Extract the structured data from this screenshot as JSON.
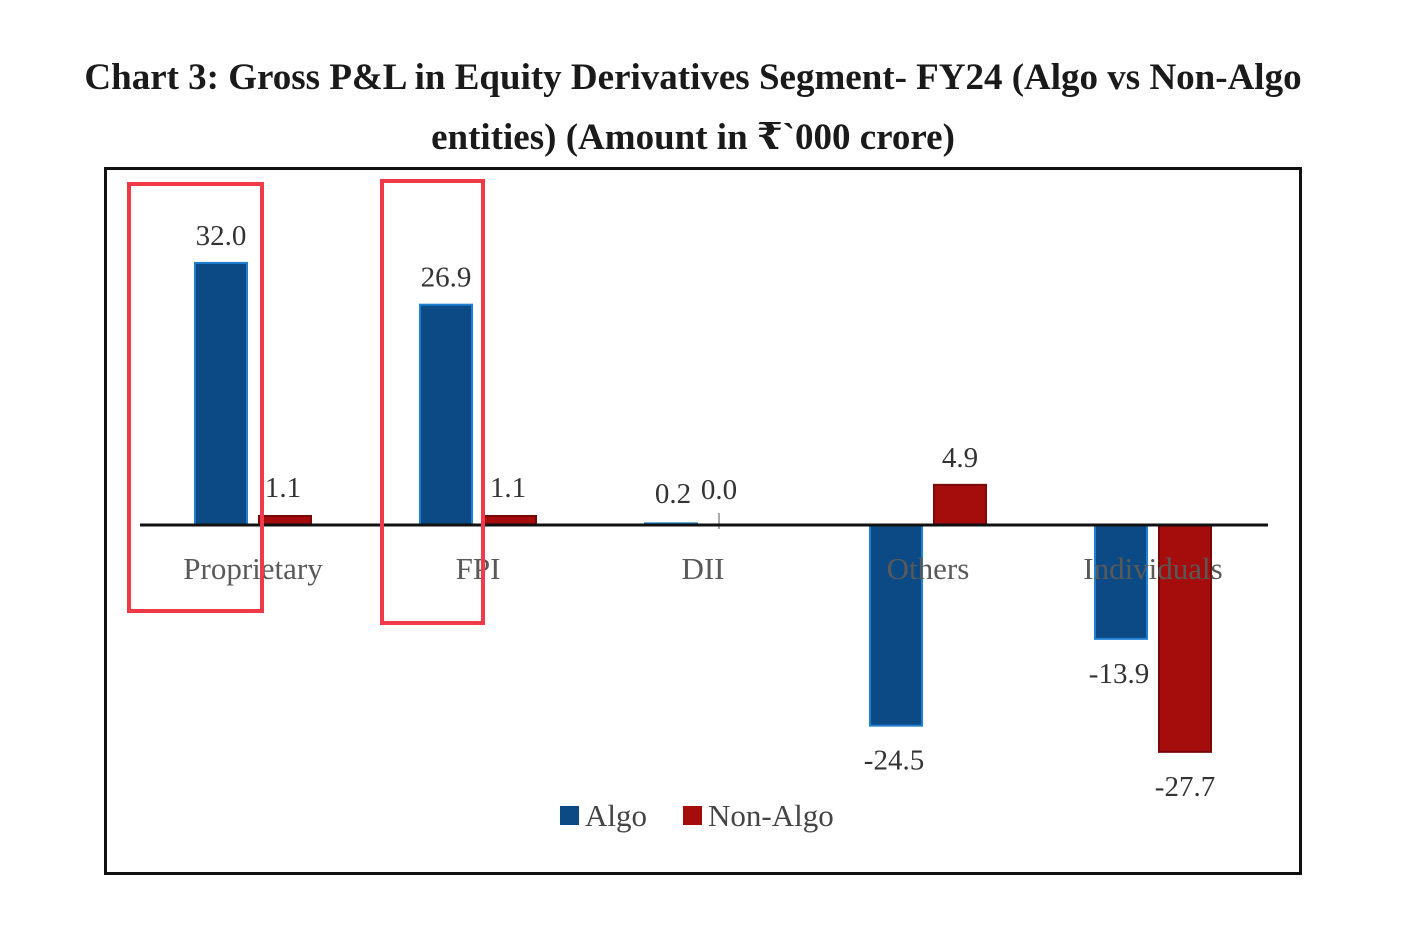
{
  "title": {
    "line1": "Chart 3: Gross P&L in Equity Derivatives Segment- FY24 (Algo vs Non-Algo",
    "line2": "entities) (Amount in  ₹`000 crore)"
  },
  "chart_data": {
    "type": "bar",
    "title": "Chart 3: Gross P&L in Equity Derivatives Segment- FY24 (Algo vs Non-Algo entities) (Amount in ₹`000 crore)",
    "categories": [
      "Proprietary",
      "FPI",
      "DII",
      "Others",
      "Individuals"
    ],
    "series": [
      {
        "name": "Algo",
        "values": [
          32.0,
          26.9,
          0.2,
          -24.5,
          -13.9
        ],
        "labels": [
          "32.0",
          "26.9",
          "0.2",
          "-24.5",
          "-13.9"
        ],
        "color": "#0b4a85"
      },
      {
        "name": "Non-Algo",
        "values": [
          1.1,
          1.1,
          0.0,
          4.9,
          -27.7
        ],
        "labels": [
          "1.1",
          "1.1",
          "0.0",
          "4.9",
          "-27.7"
        ],
        "color": "#a50c0c"
      }
    ],
    "ylim": [
      -40,
      40
    ],
    "xlabel": "",
    "ylabel": "",
    "legend": "bottom-center",
    "grid": false,
    "highlighted_categories": [
      "Proprietary",
      "FPI"
    ],
    "highlight_color": "#f03a4a"
  }
}
